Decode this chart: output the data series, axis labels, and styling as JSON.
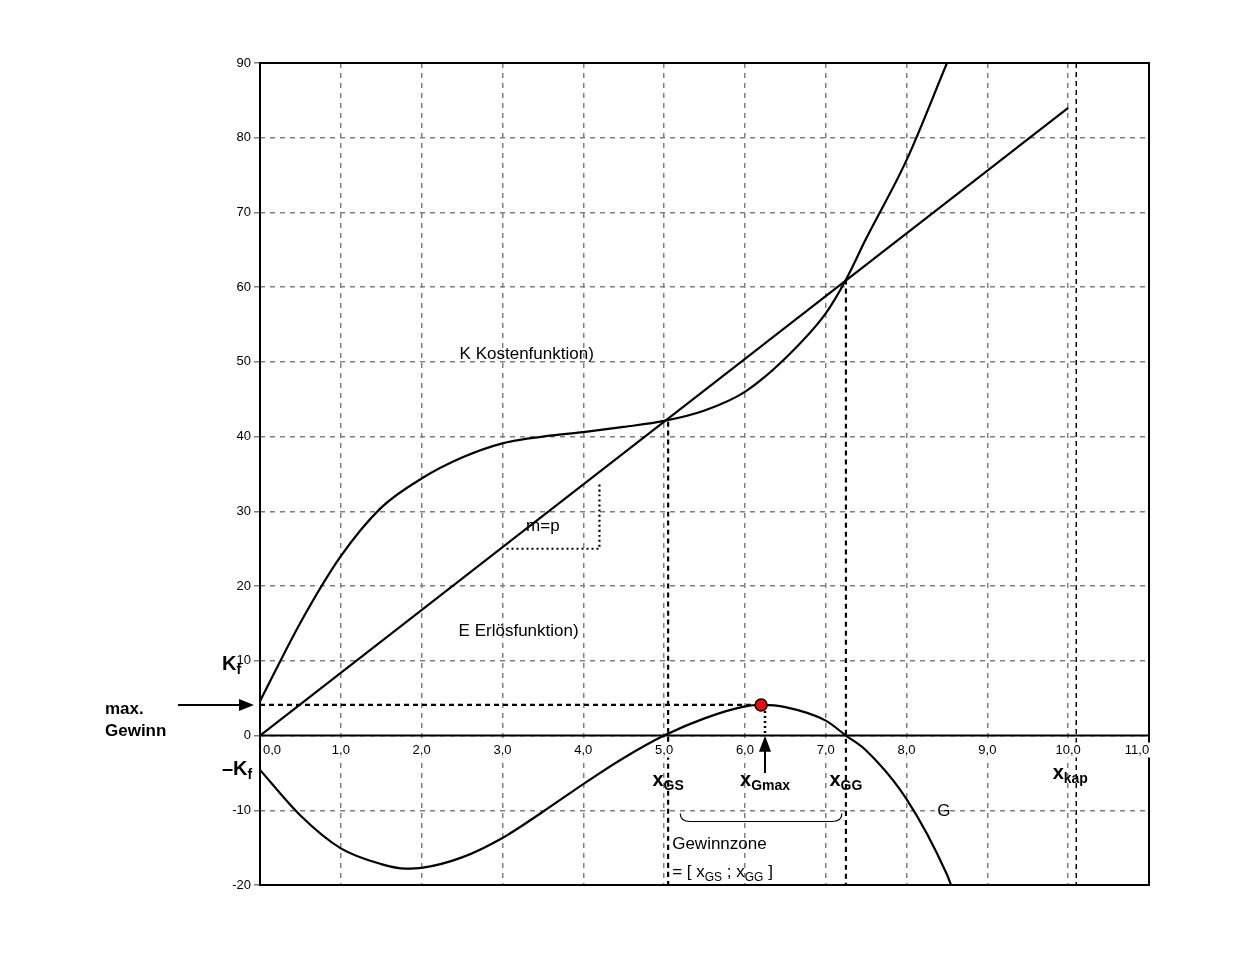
{
  "chart_data": {
    "type": "line",
    "xlim": [
      0,
      11
    ],
    "xticks": [
      {
        "value": 0,
        "label": "0,0"
      },
      {
        "value": 1,
        "label": "1,0"
      },
      {
        "value": 2,
        "label": "2,0"
      },
      {
        "value": 3,
        "label": "3,0"
      },
      {
        "value": 4,
        "label": "4,0"
      },
      {
        "value": 5,
        "label": "5,0"
      },
      {
        "value": 6,
        "label": "6,0"
      },
      {
        "value": 7,
        "label": "7,0"
      },
      {
        "value": 8,
        "label": "8,0"
      },
      {
        "value": 9,
        "label": "9,0"
      },
      {
        "value": 10,
        "label": "10,0"
      },
      {
        "value": 11,
        "label": "11,0"
      }
    ],
    "ylim": [
      -20,
      90
    ],
    "yticks": [
      -20,
      -10,
      0,
      10,
      20,
      30,
      40,
      50,
      60,
      70,
      80,
      90
    ],
    "grid": true,
    "legend": false,
    "line_style": "solid",
    "marker": "none",
    "series": [
      {
        "color": "#000000",
        "x": [
          0,
          0.5,
          1,
          1.5,
          2,
          2.5,
          3,
          3.5,
          4,
          4.5,
          5,
          5.5,
          6,
          6.5,
          7,
          7.25,
          7.5,
          8,
          8.5
        ],
        "values": [
          4.6,
          15.1,
          24,
          30.5,
          34.4,
          37.2,
          39.1,
          40,
          40.6,
          41.3,
          42.1,
          43.5,
          46,
          50.5,
          56.5,
          61,
          66.5,
          77,
          90
        ]
      },
      {
        "color": "#000000",
        "x": [
          0,
          10
        ],
        "values": [
          0,
          84
        ]
      },
      {
        "color": "#000000",
        "x": [
          0,
          0.5,
          1,
          1.5,
          1.8,
          2,
          2.5,
          3,
          3.5,
          4,
          4.5,
          5,
          5.5,
          6,
          6.2,
          6.5,
          7,
          7.25,
          7.5,
          8,
          8.5,
          8.55
        ],
        "values": [
          -4.6,
          -10.7,
          -15.1,
          -17.2,
          -17.8,
          -17.7,
          -16.3,
          -13.7,
          -10.2,
          -6.5,
          -3,
          0,
          2.3,
          3.9,
          4.1,
          3.8,
          2,
          0,
          -2,
          -8.5,
          -18.6,
          -20
        ]
      },
      {
        "color": "#000000",
        "line_style": "dotted",
        "x": [
          3.05,
          4.2,
          4.2
        ],
        "values": [
          25,
          25,
          34
        ]
      },
      {
        "color": "#000000",
        "line_style": "dashed",
        "x": [
          0,
          6.2
        ],
        "values": [
          4.1,
          4.1
        ]
      },
      {
        "color": "#000000",
        "line_style": "dashed",
        "x": [
          5.05,
          5.05
        ],
        "values": [
          42,
          -20
        ]
      },
      {
        "color": "#000000",
        "line_style": "dashed",
        "x": [
          7.25,
          7.25
        ],
        "values": [
          61,
          -20
        ]
      },
      {
        "type": "scatter",
        "color": "#ff0000",
        "marker": "circle",
        "x": [
          6.2
        ],
        "values": [
          4.1
        ]
      }
    ],
    "ref_lines": [
      {
        "axis": "x",
        "value": 10.1,
        "label": "x$_{kap}$",
        "line_style": "dashed",
        "color": "#000000"
      }
    ],
    "annotations": [
      "K$_{f}$",
      "max. Gewinn",
      "–K$_{f}$",
      "K Kostenfunktion)",
      "E Erlösfunktion)",
      "m=p",
      "x$_{Gmax}$",
      "Gewinnzone",
      "= [ x$_{GS}$ ; x$_{GG}$ ]",
      "G",
      {
        "text": "x$_{GS}$",
        "x": 5.05,
        "y": -6
      },
      {
        "text": "x$_{GG}$",
        "x": 7.25,
        "y": -6
      }
    ]
  }
}
